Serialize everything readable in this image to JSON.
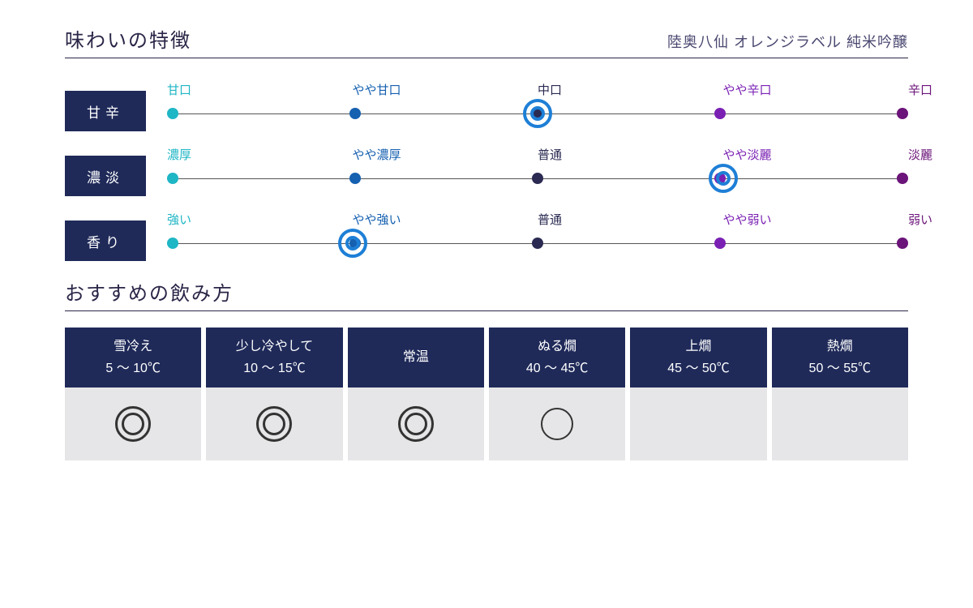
{
  "header": {
    "title": "味わいの特徴",
    "product": "陸奥八仙 オレンジラベル 純米吟醸"
  },
  "scales": [
    {
      "label": "甘辛",
      "stops": [
        "甘口",
        "やや甘口",
        "中口",
        "やや辛口",
        "辛口"
      ],
      "selected_index": 2
    },
    {
      "label": "濃淡",
      "stops": [
        "濃厚",
        "やや濃厚",
        "普通",
        "やや淡麗",
        "淡麗"
      ],
      "selected_index": 3
    },
    {
      "label": "香り",
      "stops": [
        "強い",
        "やや強い",
        "普通",
        "やや弱い",
        "弱い"
      ],
      "selected_index": 1
    }
  ],
  "scale_colors": [
    "#1fb6c5",
    "#1560b0",
    "#2a2a52",
    "#7a20b3",
    "#6b1479"
  ],
  "selector_color": "#1e7fd6",
  "label_box_bg": "#1f2a59",
  "line_color": "#555555",
  "section2": {
    "title": "おすすめの飲み方"
  },
  "temps": [
    {
      "name": "雪冷え",
      "range": "5 ～ 10℃",
      "mark": "double"
    },
    {
      "name": "少し冷やして",
      "range": "10 ～ 15℃",
      "mark": "double"
    },
    {
      "name": "常温",
      "range": "",
      "mark": "double"
    },
    {
      "name": "ぬる燗",
      "range": "40 ～ 45℃",
      "mark": "single"
    },
    {
      "name": "上燗",
      "range": "45 ～ 50℃",
      "mark": ""
    },
    {
      "name": "熱燗",
      "range": "50 ～ 55℃",
      "mark": ""
    }
  ],
  "temp_head_bg": "#1f2a59",
  "temp_body_bg": "#e6e6e8",
  "mark_color": "#333333"
}
